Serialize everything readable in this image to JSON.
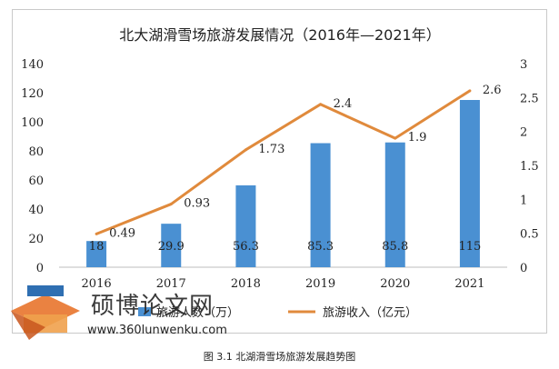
{
  "chart_data": {
    "type": "bar+line",
    "title": "北大湖滑雪场旅游发展情况（2016年—2021年）",
    "categories": [
      "2016",
      "2017",
      "2018",
      "2019",
      "2020",
      "2021"
    ],
    "series": [
      {
        "name": "旅游人数（万）",
        "kind": "bar",
        "axis": "left",
        "values": [
          18,
          29.9,
          56.3,
          85.3,
          85.8,
          115
        ],
        "labels": [
          "18",
          "29.9",
          "56.3",
          "85.3",
          "85.8",
          "115"
        ]
      },
      {
        "name": "旅游收入（亿元）",
        "kind": "line",
        "axis": "right",
        "values": [
          0.49,
          0.93,
          1.73,
          2.4,
          1.9,
          2.6
        ],
        "labels": [
          "0.49",
          "0.93",
          "1.73",
          "2.4",
          "1.9",
          "2.6"
        ]
      }
    ],
    "y_left": {
      "min": 0,
      "max": 140,
      "ticks": [
        "0",
        "20",
        "40",
        "60",
        "80",
        "100",
        "120",
        "140"
      ]
    },
    "y_right": {
      "min": 0,
      "max": 3,
      "ticks": [
        "0",
        "0.5",
        "1",
        "1.5",
        "2",
        "2.5",
        "3"
      ]
    },
    "grid": false,
    "legend": "bottom-center",
    "colors": {
      "bar": "#4a90d2",
      "line": "#e08a3c"
    }
  },
  "caption": "图 3.1  北湖滑雪场旅游发展趋势图",
  "watermark": {
    "title": "硕博论文网",
    "url": "www.360lunwenku.com"
  }
}
